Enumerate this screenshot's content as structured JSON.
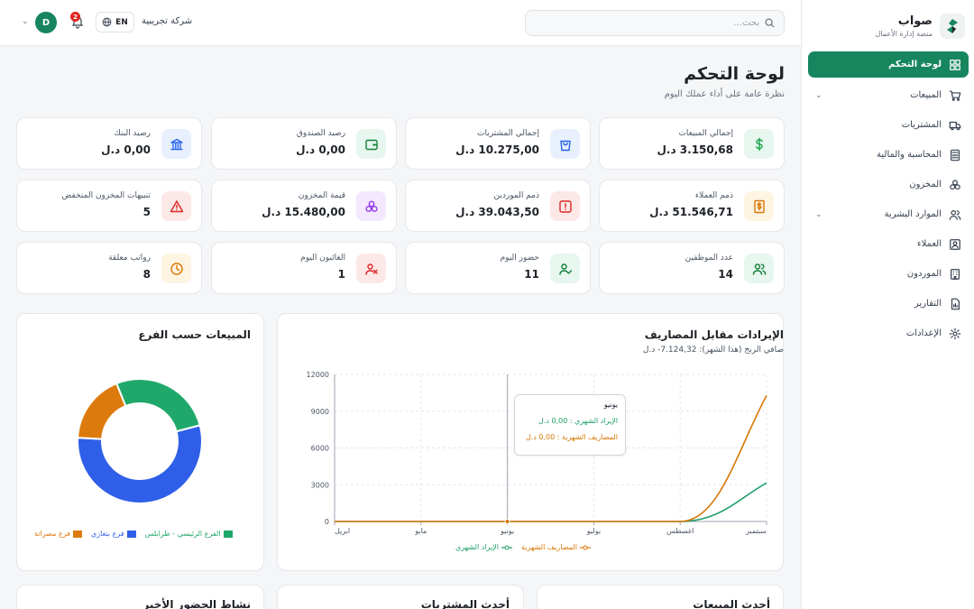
{
  "brand": {
    "name": "صواب",
    "subtitle": "منصة إدارة الأعمال"
  },
  "nav": [
    {
      "label": "لوحة التحكم",
      "icon": "dashboard-icon",
      "active": true
    },
    {
      "label": "المبيعات",
      "icon": "cart-icon",
      "expandable": true
    },
    {
      "label": "المشتريات",
      "icon": "truck-icon"
    },
    {
      "label": "المحاسبة والمالية",
      "icon": "calculator-icon"
    },
    {
      "label": "المخزون",
      "icon": "boxes-icon"
    },
    {
      "label": "الموارد البشرية",
      "icon": "users-icon",
      "expandable": true
    },
    {
      "label": "العملاء",
      "icon": "contact-card-icon"
    },
    {
      "label": "الموردون",
      "icon": "building-icon"
    },
    {
      "label": "التقارير",
      "icon": "report-icon"
    },
    {
      "label": "الإعدادات",
      "icon": "gear-icon"
    }
  ],
  "topbar": {
    "search_placeholder": "بحث...",
    "company": "شركة تجريبية",
    "lang": "EN",
    "notifications": "2",
    "avatar_initial": "D"
  },
  "header": {
    "title": "لوحة التحكم",
    "subtitle": "نظرة عامة على أداء عملك اليوم"
  },
  "stats": [
    {
      "label": "إجمالي المبيعات",
      "value": "3.150,68 د.ل",
      "icon": "dollar-icon",
      "color": "#16a34a",
      "bg": "#e7f6ee"
    },
    {
      "label": "إجمالي المشتريات",
      "value": "10.275,00 د.ل",
      "icon": "shopping-bag-icon",
      "color": "#2563eb",
      "bg": "#e8f0fe"
    },
    {
      "label": "رصيد الصندوق",
      "value": "0,00 د.ل",
      "icon": "wallet-icon",
      "color": "#15803d",
      "bg": "#e7f6ee"
    },
    {
      "label": "رصيد البنك",
      "value": "0,00 د.ل",
      "icon": "bank-icon",
      "color": "#2563eb",
      "bg": "#e8f0fe"
    },
    {
      "label": "ذمم العملاء",
      "value": "51.546,71 د.ل",
      "icon": "invoice-icon",
      "color": "#d97706",
      "bg": "#fef4e2"
    },
    {
      "label": "ذمم الموردين",
      "value": "39.043,50 د.ل",
      "icon": "alert-square-icon",
      "color": "#dc2626",
      "bg": "#fde8e8"
    },
    {
      "label": "قيمة المخزون",
      "value": "15.480,00 د.ل",
      "icon": "boxes-icon",
      "color": "#9333ea",
      "bg": "#f3e8fd"
    },
    {
      "label": "تنبيهات المخزون المنخفض",
      "value": "5",
      "icon": "warning-icon",
      "color": "#dc2626",
      "bg": "#fde8e8"
    },
    {
      "label": "عدد الموظفين",
      "value": "14",
      "icon": "users-icon",
      "color": "#15803d",
      "bg": "#e7f6ee"
    },
    {
      "label": "حضور اليوم",
      "value": "11",
      "icon": "user-check-icon",
      "color": "#15803d",
      "bg": "#e7f6ee"
    },
    {
      "label": "الغائبون اليوم",
      "value": "1",
      "icon": "user-x-icon",
      "color": "#dc2626",
      "bg": "#fde8e8"
    },
    {
      "label": "رواتب معلقة",
      "value": "8",
      "icon": "clock-icon",
      "color": "#d97706",
      "bg": "#fef4e2"
    }
  ],
  "revenue_panel": {
    "title": "الإيرادات مقابل المصاريف",
    "subtitle": "صافي الربح (هذا الشهر): 7.124,32- د.ل",
    "tooltip": {
      "title": "يونيو",
      "revenue": "الإيراد الشهري : 0,00 د.ل",
      "expense": "المصاريف الشهرية : 0,00 د.ل"
    }
  },
  "branch_panel": {
    "title": "المبيعات حسب الفرع"
  },
  "bottom_panels": {
    "sales": "أحدث المبيعات",
    "purchases": "أحدث المشتريات",
    "attendance": "نشاط الحضور الأخير"
  },
  "chart_data": [
    {
      "type": "line",
      "title": "الإيرادات مقابل المصاريف",
      "categories": [
        "ابريل",
        "مايو",
        "يونيو",
        "يوليو",
        "اغسطس",
        "سبتمبر"
      ],
      "ylim": [
        0,
        12000
      ],
      "yticks": [
        0,
        3000,
        6000,
        9000,
        12000
      ],
      "series": [
        {
          "name": "الإيراد الشهري",
          "color": "#22a06b",
          "values": [
            0,
            0,
            0,
            0,
            0,
            3150.68
          ]
        },
        {
          "name": "المصاريف الشهرية",
          "color": "#d97706",
          "values": [
            0,
            0,
            0,
            0,
            0,
            10275
          ]
        }
      ],
      "grid": true,
      "legend": "bottom"
    },
    {
      "type": "pie",
      "title": "المبيعات حسب الفرع",
      "labels": [
        "الفرع الرئيسي - طرابلس",
        "فرع بنغازي",
        "فرع مصراتة"
      ],
      "values": [
        27,
        55,
        18
      ],
      "colors": [
        "#20a86b",
        "#2f5fe8",
        "#dd7a0d"
      ],
      "legend": "bottom"
    }
  ]
}
